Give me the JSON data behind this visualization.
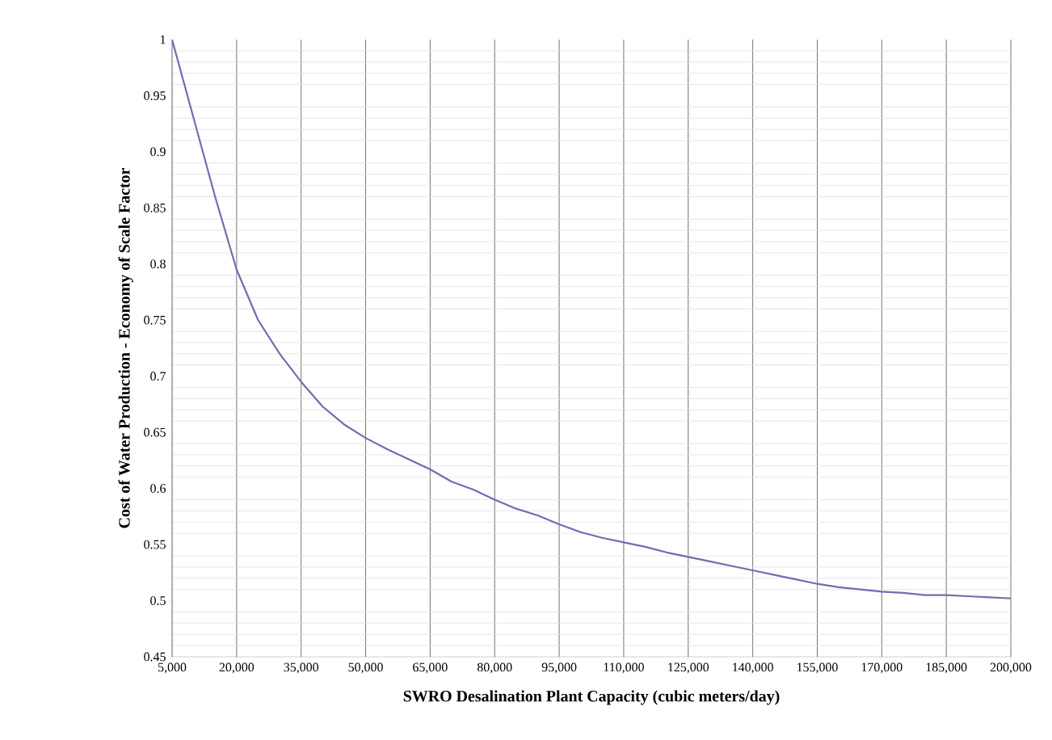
{
  "chart_data": {
    "type": "line",
    "xlabel": "SWRO Desalination Plant Capacity (cubic meters/day)",
    "ylabel": "Cost of Water Production - Economy of Scale Factor",
    "x": [
      5000,
      10000,
      15000,
      20000,
      25000,
      30000,
      35000,
      40000,
      45000,
      50000,
      55000,
      60000,
      65000,
      70000,
      75000,
      80000,
      85000,
      90000,
      95000,
      100000,
      105000,
      110000,
      115000,
      120000,
      125000,
      130000,
      135000,
      140000,
      145000,
      150000,
      155000,
      160000,
      165000,
      170000,
      175000,
      180000,
      185000,
      190000,
      195000,
      200000
    ],
    "series": [
      {
        "color": "#7b68b0",
        "values": [
          1.0,
          0.93,
          0.86,
          0.795,
          0.75,
          0.72,
          0.695,
          0.673,
          0.657,
          0.645,
          0.635,
          0.626,
          0.617,
          0.606,
          0.599,
          0.59,
          0.582,
          0.576,
          0.568,
          0.561,
          0.556,
          0.552,
          0.548,
          0.543,
          0.539,
          0.535,
          0.531,
          0.527,
          0.523,
          0.519,
          0.515,
          0.512,
          0.51,
          0.508,
          0.507,
          0.505,
          0.505,
          0.504,
          0.503,
          0.502
        ]
      }
    ],
    "xlim": [
      5000,
      200000
    ],
    "ylim": [
      0.45,
      1
    ],
    "xticks": [
      {
        "value": 5000,
        "label": "5,000"
      },
      {
        "value": 20000,
        "label": "20,000"
      },
      {
        "value": 35000,
        "label": "35,000"
      },
      {
        "value": 50000,
        "label": "50,000"
      },
      {
        "value": 65000,
        "label": "65,000"
      },
      {
        "value": 80000,
        "label": "80,000"
      },
      {
        "value": 95000,
        "label": "95,000"
      },
      {
        "value": 110000,
        "label": "110,000"
      },
      {
        "value": 125000,
        "label": "125,000"
      },
      {
        "value": 140000,
        "label": "140,000"
      },
      {
        "value": 155000,
        "label": "155,000"
      },
      {
        "value": 170000,
        "label": "170,000"
      },
      {
        "value": 185000,
        "label": "185,000"
      },
      {
        "value": 200000,
        "label": "200,000"
      }
    ],
    "yticks": [
      0.45,
      0.5,
      0.55,
      0.6,
      0.65,
      0.7,
      0.75,
      0.8,
      0.85,
      0.9,
      0.95,
      1
    ],
    "grid": true,
    "marker": "none",
    "line_style": "solid"
  }
}
